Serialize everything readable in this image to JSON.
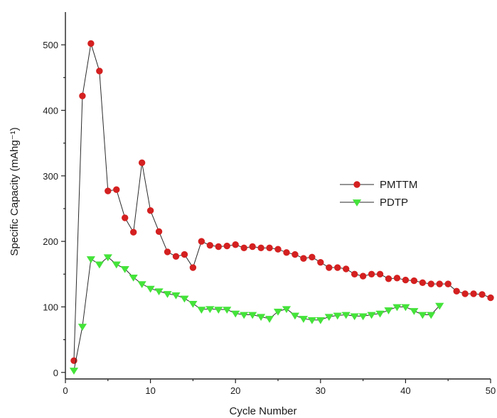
{
  "chart_data": {
    "type": "line",
    "title": "",
    "xlabel": "Cycle Number",
    "ylabel": "Specific Capacity (mAhg⁻¹)",
    "xlim": [
      0,
      50
    ],
    "ylim": [
      -10,
      550
    ],
    "xticks": [
      0,
      10,
      20,
      30,
      40,
      50
    ],
    "yticks": [
      0,
      100,
      200,
      300,
      400,
      500
    ],
    "grid": false,
    "legend_position": "center-right",
    "series": [
      {
        "name": "PMTTM",
        "color": "#d42020",
        "marker": "circle",
        "x": [
          1,
          2,
          3,
          4,
          5,
          6,
          7,
          8,
          9,
          10,
          11,
          12,
          13,
          14,
          15,
          16,
          17,
          18,
          19,
          20,
          21,
          22,
          23,
          24,
          25,
          26,
          27,
          28,
          29,
          30,
          31,
          32,
          33,
          34,
          35,
          36,
          37,
          38,
          39,
          40,
          41,
          42,
          43,
          44,
          45,
          46,
          47,
          48,
          49,
          50
        ],
        "values": [
          18,
          422,
          502,
          460,
          277,
          279,
          236,
          214,
          320,
          247,
          215,
          184,
          177,
          180,
          160,
          200,
          194,
          192,
          193,
          195,
          190,
          192,
          190,
          190,
          188,
          183,
          180,
          174,
          176,
          168,
          160,
          160,
          158,
          150,
          147,
          150,
          150,
          143,
          144,
          141,
          140,
          137,
          135,
          135,
          135,
          124,
          120,
          120,
          119,
          114
        ]
      },
      {
        "name": "PDTP",
        "color": "#44e33a",
        "marker": "triangle-down",
        "x": [
          1,
          2,
          3,
          4,
          5,
          6,
          7,
          8,
          9,
          10,
          11,
          12,
          13,
          14,
          15,
          16,
          17,
          18,
          19,
          20,
          21,
          22,
          23,
          24,
          25,
          26,
          27,
          28,
          29,
          30,
          31,
          32,
          33,
          34,
          35,
          36,
          37,
          38,
          39,
          40,
          41,
          42,
          43,
          44
        ],
        "values": [
          3,
          70,
          173,
          165,
          176,
          165,
          158,
          145,
          135,
          128,
          124,
          120,
          118,
          113,
          105,
          96,
          97,
          96,
          96,
          90,
          88,
          88,
          85,
          82,
          93,
          97,
          87,
          82,
          80,
          80,
          85,
          87,
          88,
          86,
          86,
          88,
          90,
          95,
          100,
          100,
          94,
          88,
          88,
          102
        ]
      }
    ]
  }
}
